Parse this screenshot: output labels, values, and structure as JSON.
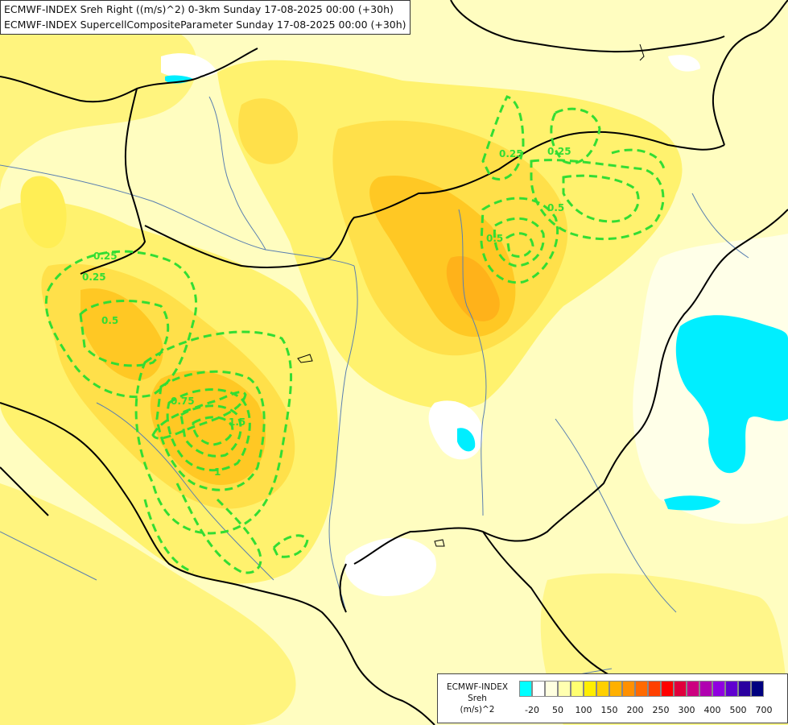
{
  "title": {
    "line1": "ECMWF-INDEX Sreh Right ((m/s)^2) 0-3km Sunday 17-08-2025 00:00 (+30h)",
    "line2": "ECMWF-INDEX SupercellCompositeParameter Sunday 17-08-2025 00:00 (+30h)"
  },
  "contour_labels": [
    "0.25",
    "0.5",
    "0.75",
    "1.5",
    "1",
    "0.25",
    "0.5",
    "0.25",
    "0.5",
    "0.25"
  ],
  "legend": {
    "label_line1": "ECMWF-INDEX",
    "label_line2": "Sreh",
    "label_line3": "(m/s)^2",
    "colors": [
      "#00ffff",
      "#ffffff",
      "#ffffe0",
      "#ffffb0",
      "#ffff70",
      "#ffee00",
      "#ffd000",
      "#ffb000",
      "#ff9000",
      "#ff6a00",
      "#ff4000",
      "#ff0000",
      "#e0003c",
      "#cc0080",
      "#b000b0",
      "#9000e0",
      "#6000d0",
      "#2a00a0",
      "#000080"
    ],
    "ticks": [
      "-20",
      "50",
      "100",
      "150",
      "200",
      "250",
      "300",
      "400",
      "500",
      "700"
    ]
  },
  "colors": {
    "contour_green": "#33dd33",
    "border": "#000000",
    "river": "#5a7fb0",
    "field_pale": "#fffdc0",
    "field_yellow": "#fff26e",
    "field_gold": "#ffdc2a",
    "field_orange": "#ffc21a",
    "cyan": "#00eeff"
  }
}
